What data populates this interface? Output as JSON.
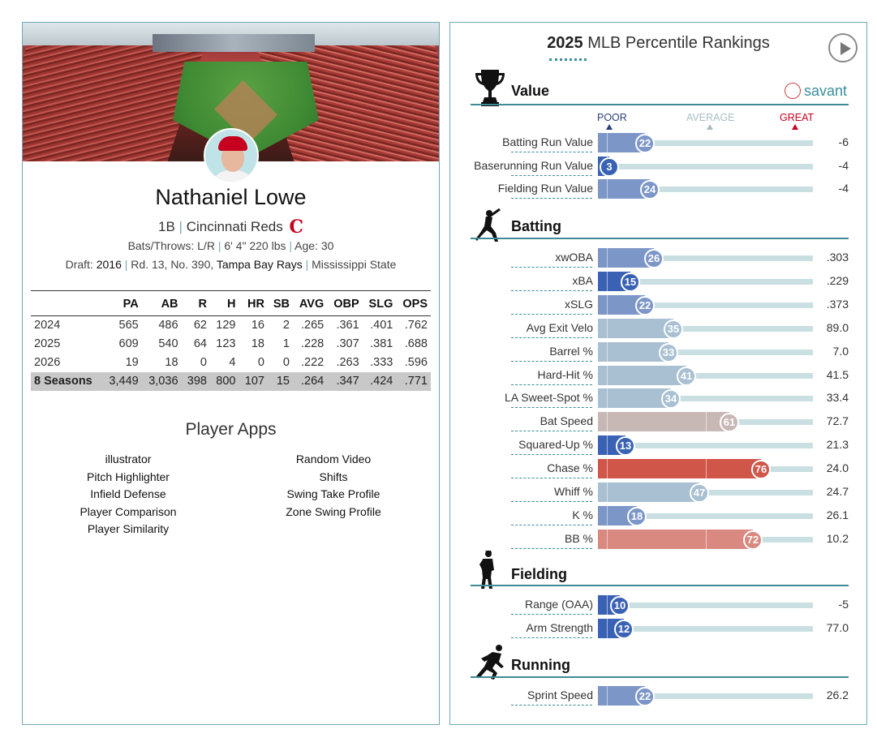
{
  "player": {
    "name": "Nathaniel Lowe",
    "position": "1B",
    "team": "Cincinnati Reds",
    "team_logo": "C",
    "bats_throws": "Bats/Throws: L/R",
    "height_weight": "6' 4\" 220 lbs",
    "age": "Age: 30",
    "draft_prefix": "Draft:",
    "draft_year": "2016",
    "draft_round": "Rd. 13, No. 390,",
    "draft_team": "Tampa Bay Rays",
    "college": "Mississippi State"
  },
  "stats": {
    "headers": [
      "",
      "PA",
      "AB",
      "R",
      "H",
      "HR",
      "SB",
      "AVG",
      "OBP",
      "SLG",
      "OPS"
    ],
    "rows": [
      [
        "2024",
        "565",
        "486",
        "62",
        "129",
        "16",
        "2",
        ".265",
        ".361",
        ".401",
        ".762"
      ],
      [
        "2025",
        "609",
        "540",
        "64",
        "123",
        "18",
        "1",
        ".228",
        ".307",
        ".381",
        ".688"
      ],
      [
        "2026",
        "19",
        "18",
        "0",
        "4",
        "0",
        "0",
        ".222",
        ".263",
        ".333",
        ".596"
      ]
    ],
    "total": [
      "8 Seasons",
      "3,449",
      "3,036",
      "398",
      "800",
      "107",
      "15",
      ".264",
      ".347",
      ".424",
      ".771"
    ]
  },
  "apps": {
    "title": "Player Apps",
    "col1": [
      "illustrator",
      "Pitch Highlighter",
      "Infield Defense",
      "Player Comparison",
      "Player Similarity"
    ],
    "col2": [
      "Random Video",
      "Shifts",
      "Swing Take Profile",
      "Zone Swing Profile"
    ]
  },
  "rankings": {
    "title_year": "2025",
    "title_rest": " MLB Percentile Rankings",
    "brand": "savant",
    "scale": {
      "poor": "POOR",
      "average": "AVERAGE",
      "great": "GREAT"
    },
    "sections": {
      "value": "Value",
      "batting": "Batting",
      "fielding": "Fielding",
      "running": "Running"
    },
    "colors": {
      "poor": "#3a62b4",
      "below": "#7b96c7",
      "mid_low": "#a8c0d2",
      "mid_high": "#c8b8b5",
      "above": "#d9897f",
      "great": "#d0564a"
    },
    "value_metrics": [
      {
        "label": "Batting Run Value",
        "pct": 22,
        "value": "-6"
      },
      {
        "label": "Baserunning Run Value",
        "pct": 3,
        "value": "-4"
      },
      {
        "label": "Fielding Run Value",
        "pct": 24,
        "value": "-4"
      }
    ],
    "batting_metrics": [
      {
        "label": "xwOBA",
        "pct": 26,
        "value": ".303"
      },
      {
        "label": "xBA",
        "pct": 15,
        "value": ".229"
      },
      {
        "label": "xSLG",
        "pct": 22,
        "value": ".373"
      },
      {
        "label": "Avg Exit Velo",
        "pct": 35,
        "value": "89.0"
      },
      {
        "label": "Barrel %",
        "pct": 33,
        "value": "7.0"
      },
      {
        "label": "Hard-Hit %",
        "pct": 41,
        "value": "41.5"
      },
      {
        "label": "LA Sweet-Spot %",
        "pct": 34,
        "value": "33.4"
      },
      {
        "label": "Bat Speed",
        "pct": 61,
        "value": "72.7"
      },
      {
        "label": "Squared-Up %",
        "pct": 13,
        "value": "21.3"
      },
      {
        "label": "Chase %",
        "pct": 76,
        "value": "24.0"
      },
      {
        "label": "Whiff %",
        "pct": 47,
        "value": "24.7"
      },
      {
        "label": "K %",
        "pct": 18,
        "value": "26.1"
      },
      {
        "label": "BB %",
        "pct": 72,
        "value": "10.2"
      }
    ],
    "fielding_metrics": [
      {
        "label": "Range (OAA)",
        "pct": 10,
        "value": "-5"
      },
      {
        "label": "Arm Strength",
        "pct": 12,
        "value": "77.0"
      }
    ],
    "running_metrics": [
      {
        "label": "Sprint Speed",
        "pct": 22,
        "value": "26.2"
      }
    ]
  }
}
